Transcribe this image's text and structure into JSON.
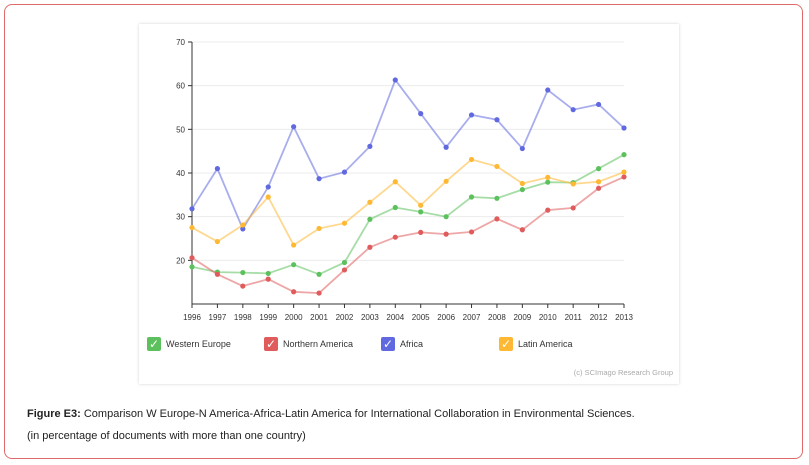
{
  "caption": {
    "label": "Figure E3:",
    "text": "Comparison W Europe-N America-Africa-Latin America for International Collaboration in Environmental Sciences.",
    "note": "(in percentage of documents with more than one country)"
  },
  "credit": "(c) SCImago Research Group",
  "chart_data": {
    "type": "line",
    "x": [
      "1996",
      "1997",
      "1998",
      "1999",
      "2000",
      "2001",
      "2002",
      "2003",
      "2004",
      "2005",
      "2006",
      "2007",
      "2008",
      "2009",
      "2010",
      "2011",
      "2012",
      "2013"
    ],
    "ylim": [
      10,
      70
    ],
    "yticks": [
      20,
      30,
      40,
      50,
      60,
      70
    ],
    "grid": true,
    "legend_position": "bottom",
    "series": [
      {
        "name": "Western Europe",
        "color": "#5cc15c",
        "values": [
          18.5,
          17.3,
          17.2,
          17.0,
          19.0,
          16.8,
          19.5,
          29.4,
          32.1,
          31.1,
          30.0,
          34.5,
          34.2,
          36.2,
          37.9,
          37.8,
          41.0,
          44.2
        ]
      },
      {
        "name": "Northern America",
        "color": "#e05c5c",
        "values": [
          20.6,
          16.8,
          14.1,
          15.7,
          12.8,
          12.5,
          17.8,
          23.0,
          25.3,
          26.4,
          26.0,
          26.5,
          29.5,
          27.0,
          31.5,
          32.0,
          36.5,
          39.1
        ]
      },
      {
        "name": "Africa",
        "color": "#6169e0",
        "values": [
          31.8,
          41.0,
          27.2,
          36.8,
          50.6,
          38.7,
          40.2,
          46.1,
          61.3,
          53.6,
          45.9,
          53.3,
          52.2,
          45.6,
          59.0,
          54.5,
          55.7,
          50.3
        ]
      },
      {
        "name": "Latin America",
        "color": "#ffb833",
        "values": [
          27.5,
          24.3,
          28.1,
          34.5,
          23.5,
          27.3,
          28.5,
          33.3,
          38.0,
          32.6,
          38.1,
          43.1,
          41.5,
          37.6,
          39.0,
          37.5,
          38.0,
          40.2
        ]
      }
    ]
  }
}
